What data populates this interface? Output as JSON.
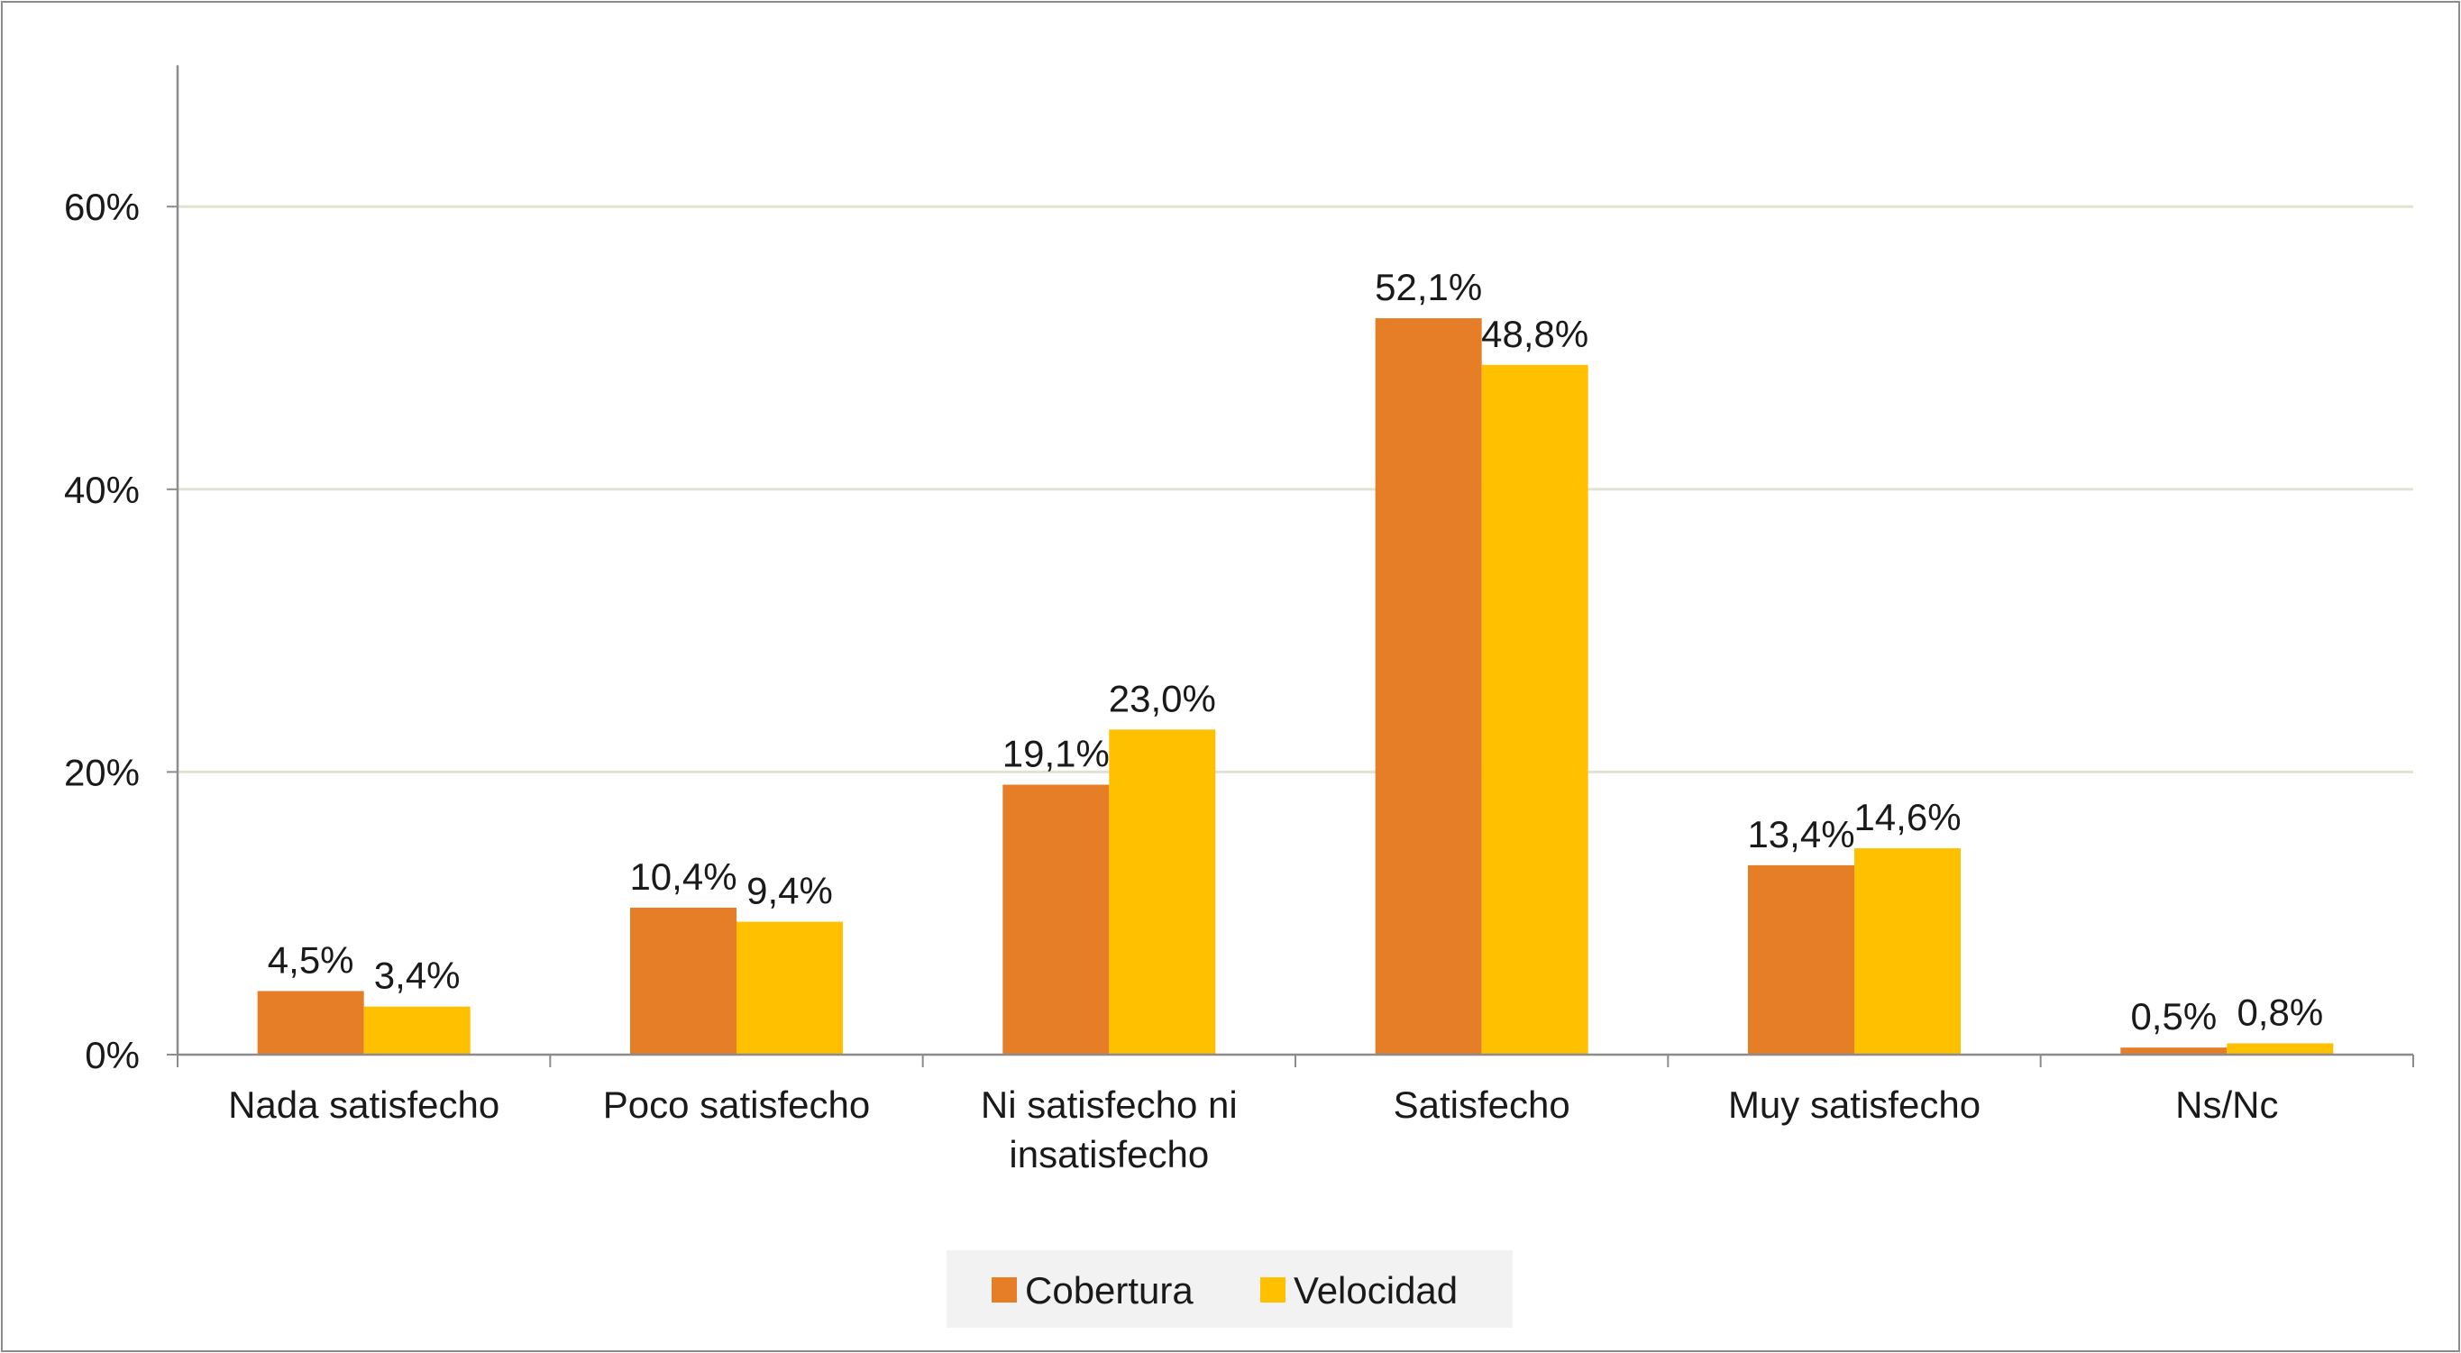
{
  "chart_data": {
    "type": "bar",
    "categories": [
      [
        "Nada satisfecho"
      ],
      [
        "Poco satisfecho"
      ],
      [
        "Ni satisfecho ni",
        "insatisfecho"
      ],
      [
        "Satisfecho"
      ],
      [
        "Muy satisfecho"
      ],
      [
        "Ns/Nc"
      ]
    ],
    "series": [
      {
        "name": "Cobertura",
        "color": "#E57E26",
        "values": [
          4.5,
          10.4,
          19.1,
          52.1,
          13.4,
          0.5
        ],
        "labels": [
          "4,5%",
          "10,4%",
          "19,1%",
          "52,1%",
          "13,4%",
          "0,5%"
        ]
      },
      {
        "name": "Velocidad",
        "color": "#FFC000",
        "values": [
          3.4,
          9.4,
          23.0,
          48.8,
          14.6,
          0.8
        ],
        "labels": [
          "3,4%",
          "9,4%",
          "23,0%",
          "48,8%",
          "14,6%",
          "0,8%"
        ]
      }
    ],
    "ylim": [
      0,
      70
    ],
    "yticks": [
      {
        "value": 0,
        "label": "0%"
      },
      {
        "value": 20,
        "label": "20%"
      },
      {
        "value": 40,
        "label": "40%"
      },
      {
        "value": 60,
        "label": "60%"
      }
    ],
    "grid": true,
    "legend": "bottom-center",
    "gridColor": "#E2E2D2",
    "axisColor": "#8C8C8C"
  }
}
